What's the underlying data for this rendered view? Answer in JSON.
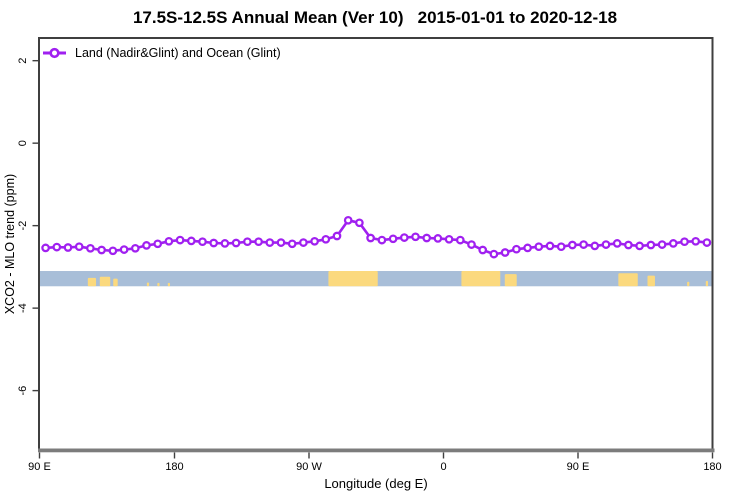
{
  "chart_data": {
    "type": "line",
    "title": "17.5S-12.5S Annual Mean (Ver 10)   2015-01-01 to 2020-12-18",
    "xlabel": "Longitude (deg E)",
    "ylabel": "XCO2 - MLO trend (ppm)",
    "grid": false,
    "legend": {
      "position": "top-left",
      "label": "Land (Nadir&Glint) and Ocean (Glint)",
      "marker": "open-circle-on-line"
    },
    "x_axis": {
      "range_display_lon": [
        90,
        540
      ],
      "ticks": [
        {
          "lon": 90,
          "label": "90 E"
        },
        {
          "lon": 180,
          "label": "180"
        },
        {
          "lon": 270,
          "label": "90 W"
        },
        {
          "lon": 360,
          "label": "0"
        },
        {
          "lon": 450,
          "label": "90 E"
        },
        {
          "lon": 540,
          "label": "180"
        }
      ]
    },
    "y_axis": {
      "range": [
        -7.44,
        2.55
      ],
      "ticks": [
        {
          "v": 2,
          "label": "2"
        },
        {
          "v": 0,
          "label": "0"
        },
        {
          "v": -2,
          "label": "-2"
        },
        {
          "v": -4,
          "label": "-4"
        },
        {
          "v": -6,
          "label": "-6"
        }
      ]
    },
    "series": [
      {
        "name": "Land (Nadir&Glint) and Ocean (Glint)",
        "color": "#A020F0",
        "marker": "open-circle",
        "lon_start": 93.75,
        "lon_step": 7.5,
        "values": [
          -2.54,
          -2.52,
          -2.53,
          -2.51,
          -2.55,
          -2.59,
          -2.61,
          -2.58,
          -2.55,
          -2.48,
          -2.44,
          -2.38,
          -2.35,
          -2.37,
          -2.39,
          -2.42,
          -2.43,
          -2.42,
          -2.39,
          -2.39,
          -2.41,
          -2.41,
          -2.44,
          -2.41,
          -2.38,
          -2.33,
          -2.25,
          -1.87,
          -1.93,
          -2.3,
          -2.35,
          -2.32,
          -2.29,
          -2.27,
          -2.3,
          -2.31,
          -2.33,
          -2.35,
          -2.46,
          -2.59,
          -2.69,
          -2.65,
          -2.57,
          -2.54,
          -2.51,
          -2.49,
          -2.51,
          -2.47,
          -2.46,
          -2.49,
          -2.46,
          -2.43,
          -2.47,
          -2.49,
          -2.47,
          -2.46,
          -2.43,
          -2.39,
          -2.38,
          -2.41
        ]
      }
    ],
    "ocean_land_strip": {
      "description": "land/ocean mask band across longitudes",
      "ocean_color": "#A8BED8",
      "land_color": "#FBD97E",
      "value_top": -3.1,
      "value_bottom": -3.47,
      "land_segments": [
        {
          "from": 122.0,
          "to": 127.5,
          "height_frac": 0.55
        },
        {
          "from": 130.0,
          "to": 137.0,
          "height_frac": 0.62
        },
        {
          "from": 139.0,
          "to": 142.0,
          "height_frac": 0.5
        },
        {
          "from": 161.5,
          "to": 163.0,
          "height_frac": 0.25
        },
        {
          "from": 168.5,
          "to": 170.0,
          "height_frac": 0.22
        },
        {
          "from": 175.5,
          "to": 177.0,
          "height_frac": 0.22
        },
        {
          "from": 283.0,
          "to": 316.0,
          "height_frac": 1.0
        },
        {
          "from": 372.0,
          "to": 398.0,
          "height_frac": 1.0
        },
        {
          "from": 401.0,
          "to": 409.0,
          "height_frac": 0.8
        },
        {
          "from": 477.0,
          "to": 490.0,
          "height_frac": 0.85
        },
        {
          "from": 496.5,
          "to": 501.5,
          "height_frac": 0.7
        },
        {
          "from": 523.0,
          "to": 524.5,
          "height_frac": 0.3
        },
        {
          "from": 535.5,
          "to": 537.0,
          "height_frac": 0.35
        }
      ]
    }
  },
  "colors": {
    "background": "#FFFFFF",
    "box_border": "#3F3F3F",
    "bottom_axis": "#7C7C7C",
    "tick": "#3F3F3F",
    "text": "#000000"
  }
}
